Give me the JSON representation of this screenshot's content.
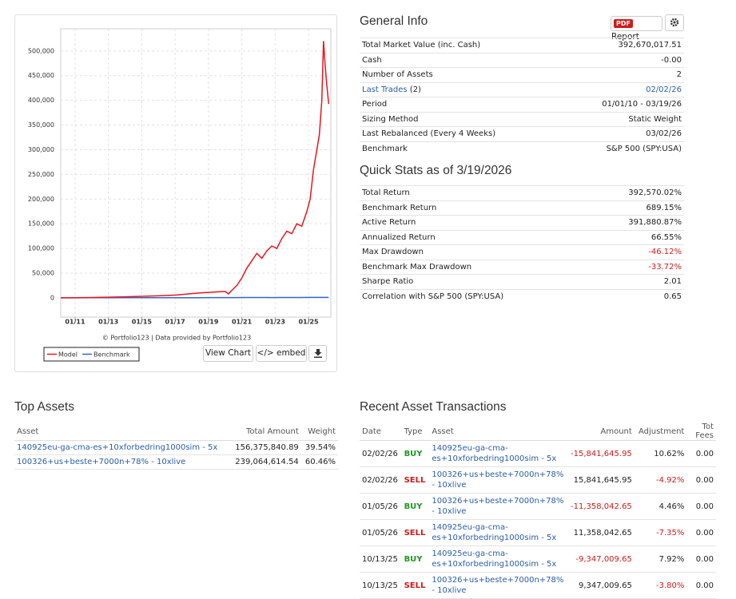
{
  "chart": {
    "type": "line",
    "x": [
      2010.15,
      2011,
      2012,
      2013,
      2014,
      2015,
      2016,
      2017,
      2017.5,
      2018,
      2018.5,
      2019,
      2019.5,
      2020,
      2020.2,
      2020.4,
      2020.7,
      2021,
      2021.3,
      2021.6,
      2021.9,
      2022.2,
      2022.5,
      2022.8,
      2023.1,
      2023.4,
      2023.7,
      2024,
      2024.3,
      2024.6,
      2024.9,
      2025.1,
      2025.3,
      2025.5,
      2025.65,
      2025.8,
      2025.9,
      2026,
      2026.1,
      2026.21
    ],
    "series": [
      {
        "name": "Model",
        "color": "#e8161b",
        "values": [
          100,
          250,
          600,
          1200,
          2000,
          3000,
          4000,
          5500,
          7000,
          8500,
          10000,
          11000,
          12000,
          13000,
          8000,
          15000,
          25000,
          40000,
          60000,
          75000,
          90000,
          80000,
          95000,
          105000,
          100000,
          120000,
          135000,
          130000,
          150000,
          145000,
          175000,
          200000,
          260000,
          300000,
          330000,
          400000,
          520000,
          470000,
          430000,
          392670
        ]
      },
      {
        "name": "Benchmark",
        "color": "#3366cc",
        "values": [
          100,
          115,
          135,
          170,
          190,
          195,
          225,
          240,
          270,
          290,
          300,
          350,
          380,
          400,
          340,
          420,
          470,
          540,
          590,
          620,
          660,
          560,
          540,
          520,
          580,
          620,
          650,
          680,
          720,
          700,
          760,
          780,
          760,
          820,
          850,
          800,
          820,
          790,
          780,
          789
        ]
      }
    ],
    "xlim": [
      2010.14,
      2026.34
    ],
    "xticks": [
      {
        "value": 2011,
        "label": "01/11"
      },
      {
        "value": 2013,
        "label": "01/13"
      },
      {
        "value": 2015,
        "label": "01/15"
      },
      {
        "value": 2017,
        "label": "01/17"
      },
      {
        "value": 2019,
        "label": "01/19"
      },
      {
        "value": 2021,
        "label": "01/21"
      },
      {
        "value": 2023,
        "label": "01/23"
      },
      {
        "value": 2025,
        "label": "01/25"
      }
    ],
    "ylim": [
      -39000,
      545000
    ],
    "yticks": [
      0,
      {
        "value": 50000,
        "label": "50,000"
      },
      {
        "value": 100000,
        "label": "100,000"
      },
      {
        "value": 150000,
        "label": "150,000"
      },
      {
        "value": 200000,
        "label": "200,000"
      },
      {
        "value": 250000,
        "label": "250,000"
      },
      {
        "value": 300000,
        "label": "300,000"
      },
      {
        "value": 350000,
        "label": "350,000"
      },
      {
        "value": 400000,
        "label": "400,000"
      },
      {
        "value": 450000,
        "label": "450,000"
      },
      {
        "value": 500000,
        "label": "500,000"
      }
    ],
    "grid": true,
    "credit": "© Portfolio123 | Data provided by Portfolio123"
  },
  "chart_buttons": [
    "View Chart",
    "</> embed"
  ],
  "general_info": {
    "title": "General Info",
    "pdf_badge": "PDF",
    "report_button": "Report",
    "rows": [
      {
        "label": "Total Market Value (inc. Cash)",
        "value": "392,670,017.51"
      },
      {
        "label": "Cash",
        "value": "-0.00"
      },
      {
        "label": "Number of Assets",
        "value": "2"
      },
      {
        "label": "Last Trades",
        "suffix": "(2)",
        "value": "02/02/26",
        "link": true
      },
      {
        "label": "Period",
        "value": "01/01/10 - 03/19/26"
      },
      {
        "label": "Sizing Method",
        "value": "Static Weight"
      },
      {
        "label": "Last Rebalanced (Every 4 Weeks)",
        "value": "03/02/26"
      },
      {
        "label": "Benchmark",
        "value": "S&P 500 (SPY:USA)"
      }
    ]
  },
  "quick_stats": {
    "title": "Quick Stats as of 3/19/2026",
    "rows": [
      {
        "label": "Total Return",
        "value": "392,570.02%"
      },
      {
        "label": "Benchmark Return",
        "value": "689.15%"
      },
      {
        "label": "Active Return",
        "value": "391,880.87%"
      },
      {
        "label": "Annualized Return",
        "value": "66.55%"
      },
      {
        "label": "Max Drawdown",
        "value": "-46.12%"
      },
      {
        "label": "Benchmark Max Drawdown",
        "value": "-33.72%"
      },
      {
        "label": "Sharpe Ratio",
        "value": "2.01"
      },
      {
        "label": "Correlation with S&P 500 (SPY:USA)",
        "value": "0.65"
      }
    ]
  },
  "top_assets": {
    "title": "Top Assets",
    "columns": [
      "Asset",
      "Total Amount",
      "Weight"
    ],
    "rows": [
      [
        "140925eu-ga-cma-es+10xforbedring1000sim - 5x",
        "156,375,840.89",
        "39.54%"
      ],
      [
        "100326+us+beste+7000n+78% - 10xlive",
        "239,064,614.54",
        "60.46%"
      ]
    ]
  },
  "recent_transactions": {
    "title": "Recent Asset Transactions",
    "columns": [
      "Date",
      "Type",
      "Asset",
      "Amount",
      "Adjustment",
      "Tot Fees"
    ],
    "type_colors": {
      "BUY": "#1e9a1e",
      "SELL": "#d11a1a"
    },
    "rows": [
      [
        "02/02/26",
        "BUY",
        "140925eu-ga-cma-es+10xforbedring1000sim - 5x",
        "-15,841,645.95",
        "10.62%",
        "0.00"
      ],
      [
        "02/02/26",
        "SELL",
        "100326+us+beste+7000n+78% - 10xlive",
        "15,841,645.95",
        "-4.92%",
        "0.00"
      ],
      [
        "01/05/26",
        "BUY",
        "100326+us+beste+7000n+78% - 10xlive",
        "-11,358,042.65",
        "4.46%",
        "0.00"
      ],
      [
        "01/05/26",
        "SELL",
        "140925eu-ga-cma-es+10xforbedring1000sim - 5x",
        "11,358,042.65",
        "-7.35%",
        "0.00"
      ],
      [
        "10/13/25",
        "BUY",
        "140925eu-ga-cma-es+10xforbedring1000sim - 5x",
        "-9,347,009.65",
        "7.92%",
        "0.00"
      ],
      [
        "10/13/25",
        "SELL",
        "100326+us+beste+7000n+78% - 10xlive",
        "9,347,009.65",
        "-3.80%",
        "0.00"
      ]
    ]
  }
}
